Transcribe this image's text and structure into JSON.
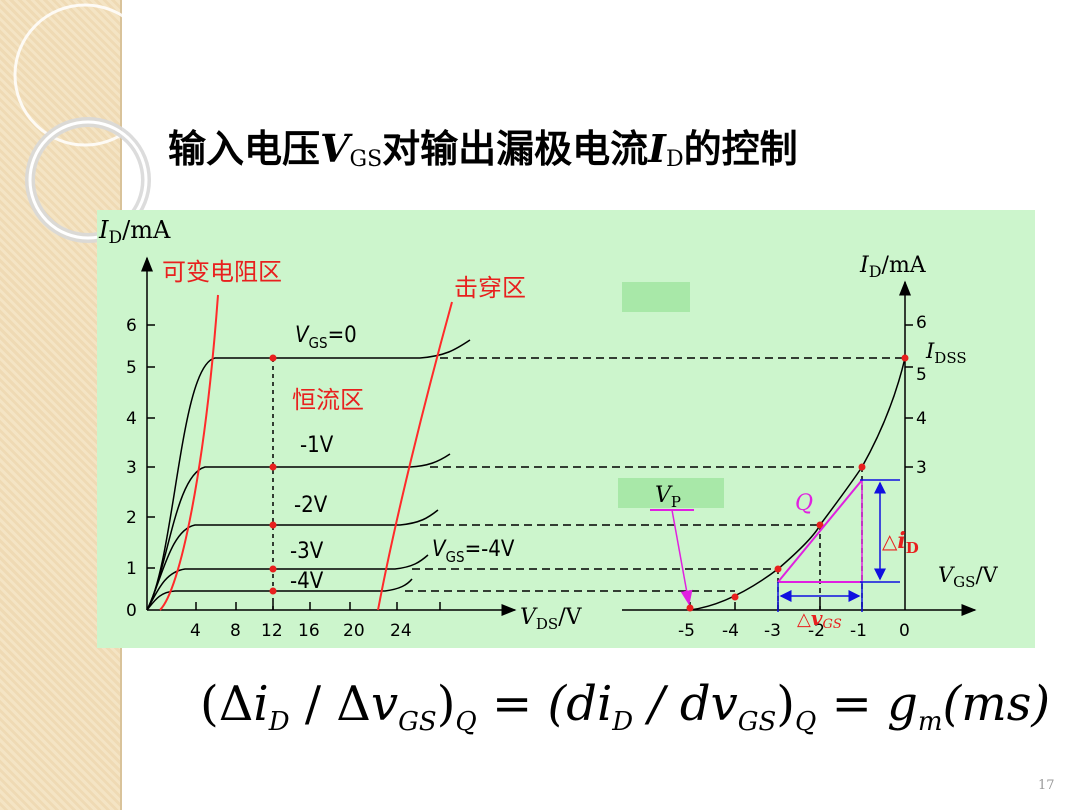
{
  "slide": {
    "title_prefix": "输入电压",
    "title_v": "V",
    "title_v_sub": "GS",
    "title_mid": "对输出漏极电流",
    "title_i": "I",
    "title_i_sub": "D",
    "title_suffix": "的控制",
    "page_number": "17"
  },
  "diagram": {
    "left_axis": {
      "y_label": "I",
      "y_label_sub": "D",
      "y_unit": "/mA",
      "x_label": "V",
      "x_label_sub": "DS",
      "x_unit": "/V",
      "y_ticks": [
        "0",
        "1",
        "2",
        "3",
        "4",
        "5",
        "6"
      ],
      "x_ticks": [
        "4",
        "8",
        "12",
        "16",
        "20",
        "24"
      ]
    },
    "regions": {
      "variable_resistance": "可变电阻区",
      "breakdown": "击穿区",
      "constant_current": "恒流区"
    },
    "curve_labels": {
      "vgs0_prefix": "V",
      "vgs0_sub": "GS",
      "vgs0_value": "=0",
      "m1": "-1V",
      "m2": "-2V",
      "m3": "-3V",
      "m4": "-4V",
      "vgs4_prefix": "V",
      "vgs4_sub": "GS",
      "vgs4_value": "=-4V"
    },
    "right_axis": {
      "y_label": "I",
      "y_label_sub": "D",
      "y_unit": "/mA",
      "x_label": "V",
      "x_label_sub": "GS",
      "x_unit": "/V",
      "y_ticks": [
        "3",
        "4",
        "5",
        "6"
      ],
      "x_ticks": [
        "-5",
        "-4",
        "-3",
        "-2",
        "-1",
        "0"
      ],
      "idss_prefix": "I",
      "idss_sub": "DSS",
      "vp_prefix": "V",
      "vp_sub": "P",
      "q_label": "Q",
      "delta_id_prefix": "△",
      "delta_id_i": "i",
      "delta_id_sub": "D",
      "delta_vgs_prefix": "△",
      "delta_vgs_v": "v",
      "delta_vgs_sub": "GS"
    },
    "colors": {
      "panel_bg": "#ccf5cc",
      "curve": "#000000",
      "region_text": "#e8201e",
      "dot": "#e8201e",
      "pinch_line": "#ff2a2a",
      "magenta": "#e020e0",
      "blue": "#1010e0"
    }
  },
  "formula": {
    "lhs_open": "(Δ",
    "lhs_i": "i",
    "lhs_i_sub": "D",
    "lhs_div": " / Δ",
    "lhs_v": "v",
    "lhs_v_sub": "GS",
    "lhs_close": ")",
    "lhs_q": "Q",
    "eq1": " = ",
    "mid_open": "(d",
    "mid_i": "i",
    "mid_i_sub": "D",
    "mid_div": " / d",
    "mid_v": "v",
    "mid_v_sub": "GS",
    "mid_close": ")",
    "mid_q": "Q",
    "eq2": " = ",
    "g": "g",
    "g_sub": "m",
    "units": "(ms)"
  }
}
